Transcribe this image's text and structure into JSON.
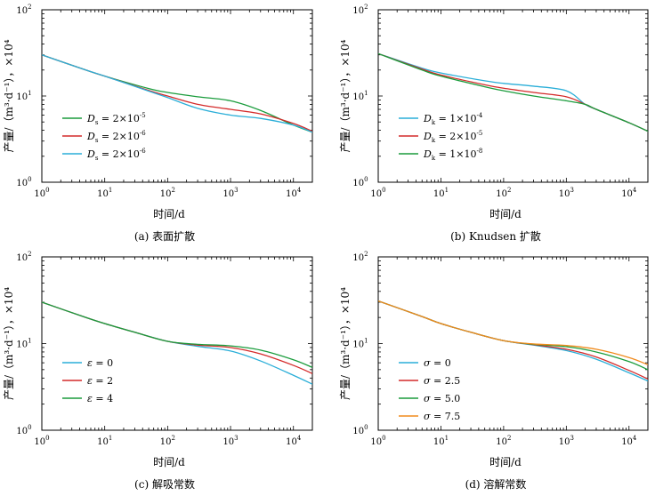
{
  "chart_data": [
    {
      "id": "a",
      "type": "line",
      "scale": "log-log",
      "caption": "(a) 表面扩散",
      "xlabel": "时间/d",
      "ylabel": "产量/（m³·d⁻¹），×10⁴",
      "xlim": [
        1,
        20000
      ],
      "ylim": [
        1,
        100
      ],
      "x_ticks": [
        "10^0",
        "10^1",
        "10^2",
        "10^3",
        "10^4"
      ],
      "y_ticks": [
        "10^0",
        "10^1",
        "10^2"
      ],
      "legend_position": "center-left",
      "series": [
        {
          "name": "Ds = 2×10⁻⁵",
          "legend": {
            "sym": "D",
            "sub": "s",
            "text": " = 2×10",
            "exp": "-5"
          },
          "color": "#1a9c3c",
          "points": [
            [
              1,
              30
            ],
            [
              5,
              20
            ],
            [
              10,
              17
            ],
            [
              50,
              12.2
            ],
            [
              100,
              11
            ],
            [
              300,
              9.8
            ],
            [
              1000,
              8.8
            ],
            [
              3000,
              6.8
            ],
            [
              10000,
              4.6
            ],
            [
              20000,
              3.8
            ]
          ]
        },
        {
          "name": "Ds = 2×10⁻⁶",
          "legend": {
            "sym": "D",
            "sub": "s",
            "text": " = 2×10",
            "exp": "-6"
          },
          "color": "#d42a2a",
          "points": [
            [
              1,
              30
            ],
            [
              5,
              20
            ],
            [
              10,
              17
            ],
            [
              50,
              11.6
            ],
            [
              100,
              10
            ],
            [
              300,
              8
            ],
            [
              1000,
              7
            ],
            [
              3000,
              6.2
            ],
            [
              10000,
              4.8
            ],
            [
              20000,
              3.9
            ]
          ]
        },
        {
          "name": "Ds = 2×10⁻⁶",
          "legend": {
            "sym": "D",
            "sub": "s",
            "text": " = 2×10",
            "exp": "-6"
          },
          "color": "#2aaed8",
          "points": [
            [
              1,
              30
            ],
            [
              5,
              20
            ],
            [
              10,
              17
            ],
            [
              50,
              11.4
            ],
            [
              100,
              9.6
            ],
            [
              300,
              7.2
            ],
            [
              1000,
              6
            ],
            [
              3000,
              5.5
            ],
            [
              10000,
              4.6
            ],
            [
              20000,
              3.8
            ]
          ]
        }
      ]
    },
    {
      "id": "b",
      "type": "line",
      "scale": "log-log",
      "caption": "(b) Knudsen 扩散",
      "xlabel": "时间/d",
      "ylabel": "产量/（m³·d⁻¹），×10⁴",
      "xlim": [
        1,
        20000
      ],
      "ylim": [
        1,
        100
      ],
      "x_ticks": [
        "10^0",
        "10^1",
        "10^2",
        "10^3",
        "10^4"
      ],
      "y_ticks": [
        "10^0",
        "10^1",
        "10^2"
      ],
      "legend_position": "center-left",
      "series": [
        {
          "name": "Dk = 1×10⁻⁴",
          "legend": {
            "sym": "D",
            "sub": "k",
            "text": " = 1×10",
            "exp": "-4"
          },
          "color": "#2aaed8",
          "points": [
            [
              1,
              31
            ],
            [
              5,
              21
            ],
            [
              10,
              18.5
            ],
            [
              50,
              15
            ],
            [
              100,
              14
            ],
            [
              300,
              13
            ],
            [
              1000,
              11.5
            ],
            [
              2000,
              8
            ],
            [
              3000,
              7
            ],
            [
              10000,
              4.9
            ],
            [
              20000,
              3.9
            ]
          ]
        },
        {
          "name": "Dk = 2×10⁻⁵",
          "legend": {
            "sym": "D",
            "sub": "k",
            "text": " = 2×10",
            "exp": "-5"
          },
          "color": "#d42a2a",
          "points": [
            [
              1,
              31
            ],
            [
              5,
              20.5
            ],
            [
              10,
              17.5
            ],
            [
              50,
              13.5
            ],
            [
              100,
              12.3
            ],
            [
              300,
              11
            ],
            [
              1000,
              9.8
            ],
            [
              2000,
              8
            ],
            [
              3000,
              7
            ],
            [
              10000,
              4.9
            ],
            [
              20000,
              3.9
            ]
          ]
        },
        {
          "name": "Dk = 1×10⁻⁸",
          "legend": {
            "sym": "D",
            "sub": "k",
            "text": " = 1×10",
            "exp": "-8"
          },
          "color": "#1a9c3c",
          "points": [
            [
              1,
              31
            ],
            [
              5,
              20
            ],
            [
              10,
              17
            ],
            [
              50,
              12.8
            ],
            [
              100,
              11.5
            ],
            [
              300,
              10
            ],
            [
              1000,
              8.8
            ],
            [
              2000,
              8
            ],
            [
              3000,
              7
            ],
            [
              10000,
              4.9
            ],
            [
              20000,
              3.9
            ]
          ]
        }
      ]
    },
    {
      "id": "c",
      "type": "line",
      "scale": "log-log",
      "caption": "(c) 解吸常数",
      "xlabel": "时间/d",
      "ylabel": "产量/（m³·d⁻¹），×10⁴",
      "xlim": [
        1,
        20000
      ],
      "ylim": [
        1,
        100
      ],
      "x_ticks": [
        "10^0",
        "10^1",
        "10^2",
        "10^3",
        "10^4"
      ],
      "y_ticks": [
        "10^0",
        "10^1",
        "10^2"
      ],
      "legend_position": "center-left",
      "series": [
        {
          "name": "ε = 0",
          "legend": {
            "sym": "ε",
            "sub": "",
            "text": " = 0",
            "exp": ""
          },
          "color": "#2aaed8",
          "points": [
            [
              1,
              30
            ],
            [
              5,
              20
            ],
            [
              10,
              17
            ],
            [
              30,
              13.5
            ],
            [
              100,
              10.6
            ],
            [
              300,
              9.3
            ],
            [
              1000,
              8.2
            ],
            [
              3000,
              6.3
            ],
            [
              10000,
              4.3
            ],
            [
              20000,
              3.4
            ]
          ]
        },
        {
          "name": "ε = 2",
          "legend": {
            "sym": "ε",
            "sub": "",
            "text": " = 2",
            "exp": ""
          },
          "color": "#d42a2a",
          "points": [
            [
              1,
              30
            ],
            [
              5,
              20
            ],
            [
              10,
              17
            ],
            [
              30,
              13.5
            ],
            [
              100,
              10.6
            ],
            [
              300,
              9.6
            ],
            [
              1000,
              9
            ],
            [
              3000,
              7.6
            ],
            [
              10000,
              5.6
            ],
            [
              20000,
              4.5
            ]
          ]
        },
        {
          "name": "ε = 4",
          "legend": {
            "sym": "ε",
            "sub": "",
            "text": " = 4",
            "exp": ""
          },
          "color": "#1a9c3c",
          "points": [
            [
              1,
              30
            ],
            [
              5,
              20
            ],
            [
              10,
              17
            ],
            [
              30,
              13.5
            ],
            [
              100,
              10.6
            ],
            [
              300,
              9.8
            ],
            [
              1000,
              9.4
            ],
            [
              3000,
              8.4
            ],
            [
              10000,
              6.5
            ],
            [
              20000,
              5.3
            ]
          ]
        }
      ]
    },
    {
      "id": "d",
      "type": "line",
      "scale": "log-log",
      "caption": "(d) 溶解常数",
      "xlabel": "时间/d",
      "ylabel": "产量/（m³·d⁻¹），×10⁴",
      "xlim": [
        1,
        20000
      ],
      "ylim": [
        1,
        100
      ],
      "x_ticks": [
        "10^0",
        "10^1",
        "10^2",
        "10^3",
        "10^4"
      ],
      "y_ticks": [
        "10^0",
        "10^1",
        "10^2"
      ],
      "legend_position": "center-left",
      "series": [
        {
          "name": "σ = 0",
          "legend": {
            "sym": "σ",
            "sub": "",
            "text": " = 0",
            "exp": ""
          },
          "color": "#2aaed8",
          "points": [
            [
              1,
              31
            ],
            [
              5,
              20.5
            ],
            [
              10,
              17
            ],
            [
              30,
              13.5
            ],
            [
              100,
              10.8
            ],
            [
              300,
              9.6
            ],
            [
              1000,
              8.3
            ],
            [
              3000,
              6.6
            ],
            [
              10000,
              4.6
            ],
            [
              20000,
              3.7
            ]
          ]
        },
        {
          "name": "σ = 2.5",
          "legend": {
            "sym": "σ",
            "sub": "",
            "text": " = 2.5",
            "exp": ""
          },
          "color": "#d42a2a",
          "points": [
            [
              1,
              31
            ],
            [
              5,
              20.5
            ],
            [
              10,
              17
            ],
            [
              30,
              13.5
            ],
            [
              100,
              10.8
            ],
            [
              300,
              9.7
            ],
            [
              1000,
              8.6
            ],
            [
              3000,
              7
            ],
            [
              10000,
              4.9
            ],
            [
              20000,
              3.9
            ]
          ]
        },
        {
          "name": "σ = 5.0",
          "legend": {
            "sym": "σ",
            "sub": "",
            "text": " = 5.0",
            "exp": ""
          },
          "color": "#1a9c3c",
          "points": [
            [
              1,
              31
            ],
            [
              5,
              20.5
            ],
            [
              10,
              17
            ],
            [
              30,
              13.5
            ],
            [
              100,
              10.8
            ],
            [
              300,
              9.8
            ],
            [
              1000,
              9.2
            ],
            [
              3000,
              8
            ],
            [
              10000,
              6.2
            ],
            [
              20000,
              5
            ]
          ]
        },
        {
          "name": "σ = 7.5",
          "legend": {
            "sym": "σ",
            "sub": "",
            "text": " = 7.5",
            "exp": ""
          },
          "color": "#f08a1c",
          "points": [
            [
              1,
              31
            ],
            [
              5,
              20.5
            ],
            [
              10,
              17
            ],
            [
              30,
              13.5
            ],
            [
              100,
              10.8
            ],
            [
              300,
              9.9
            ],
            [
              1000,
              9.5
            ],
            [
              3000,
              8.6
            ],
            [
              10000,
              6.9
            ],
            [
              20000,
              5.7
            ]
          ]
        }
      ]
    }
  ]
}
